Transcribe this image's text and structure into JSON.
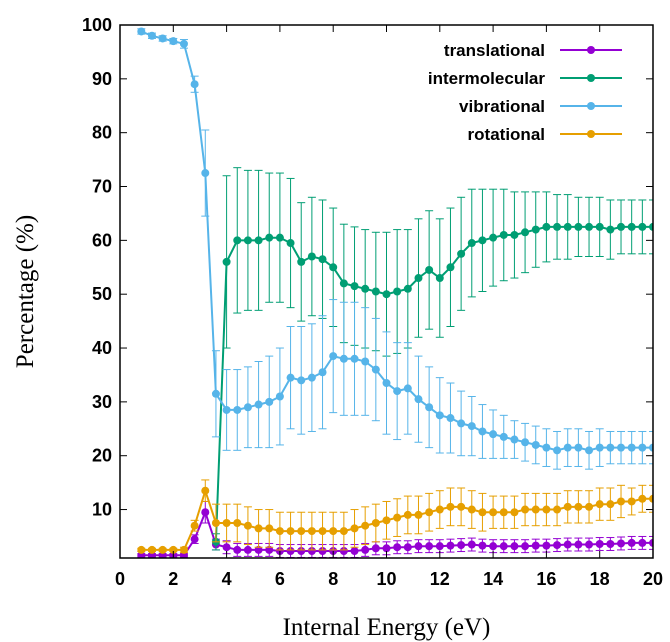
{
  "chart_data": {
    "type": "line",
    "title": "",
    "xlabel": "Internal Energy (eV)",
    "ylabel": "Percentage (%)",
    "xlim": [
      0,
      20
    ],
    "ylim": [
      1,
      100
    ],
    "xticks": [
      "0",
      "2",
      "4",
      "6",
      "8",
      "10",
      "12",
      "14",
      "16",
      "18",
      "20"
    ],
    "yticks": [
      "10",
      "20",
      "30",
      "40",
      "50",
      "60",
      "70",
      "80",
      "90",
      "100"
    ],
    "grid": false,
    "legend_position": "top-right",
    "x": [
      0.8,
      1.2,
      1.6,
      2.0,
      2.4,
      2.8,
      3.2,
      3.6,
      4.0,
      4.4,
      4.8,
      5.2,
      5.6,
      6.0,
      6.4,
      6.8,
      7.2,
      7.6,
      8.0,
      8.4,
      8.8,
      9.2,
      9.6,
      10.0,
      10.4,
      10.8,
      11.2,
      11.6,
      12.0,
      12.4,
      12.8,
      13.2,
      13.6,
      14.0,
      14.4,
      14.8,
      15.2,
      15.6,
      16.0,
      16.4,
      16.8,
      17.2,
      17.6,
      18.0,
      18.4,
      18.8,
      19.2,
      19.6,
      20.0
    ],
    "series": [
      {
        "name": "translational",
        "color": "#9400d3",
        "values": [
          1.5,
          1.5,
          1.5,
          1.5,
          1.5,
          4.5,
          9.5,
          3.5,
          3.0,
          2.5,
          2.5,
          2.5,
          2.5,
          2.3,
          2.3,
          2.3,
          2.3,
          2.3,
          2.3,
          2.3,
          2.3,
          2.5,
          2.8,
          2.8,
          3.0,
          3.0,
          3.2,
          3.2,
          3.2,
          3.3,
          3.4,
          3.5,
          3.3,
          3.2,
          3.2,
          3.2,
          3.2,
          3.3,
          3.3,
          3.4,
          3.5,
          3.5,
          3.5,
          3.6,
          3.6,
          3.7,
          3.8,
          3.8,
          3.8
        ],
        "errors": [
          0.3,
          0.3,
          0.3,
          0.3,
          0.3,
          0.8,
          2.0,
          1.0,
          1.2,
          1.2,
          1.2,
          1.2,
          1.2,
          1.2,
          1.2,
          1.2,
          1.2,
          1.2,
          1.2,
          1.2,
          1.2,
          1.2,
          1.2,
          1.2,
          1.2,
          1.2,
          1.2,
          1.2,
          1.2,
          1.2,
          1.2,
          1.2,
          1.2,
          1.2,
          1.2,
          1.2,
          1.2,
          1.2,
          1.2,
          1.2,
          1.2,
          1.2,
          1.2,
          1.2,
          1.2,
          1.2,
          1.2,
          1.2,
          1.2
        ]
      },
      {
        "name": "intermolecular",
        "color": "#009e73",
        "values": [
          null,
          null,
          null,
          null,
          null,
          null,
          null,
          4.0,
          56.0,
          60.0,
          60.0,
          60.0,
          60.5,
          60.5,
          59.5,
          56.0,
          57.0,
          56.5,
          55.0,
          52.0,
          51.5,
          51.0,
          50.5,
          50.0,
          50.5,
          51.0,
          53.0,
          54.5,
          53.0,
          55.0,
          57.5,
          59.5,
          60.0,
          60.5,
          61.0,
          61.0,
          61.5,
          62.0,
          62.5,
          62.5,
          62.5,
          62.5,
          62.5,
          62.5,
          62.0,
          62.5,
          62.5,
          62.5,
          62.5
        ],
        "errors": [
          null,
          null,
          null,
          null,
          null,
          null,
          null,
          1.5,
          16.0,
          13.5,
          13.0,
          13.0,
          12.0,
          12.0,
          12.0,
          11.0,
          11.0,
          11.0,
          11.0,
          11.0,
          11.0,
          11.0,
          11.0,
          11.5,
          11.5,
          11.0,
          11.0,
          11.0,
          11.0,
          11.0,
          10.5,
          10.0,
          9.5,
          9.0,
          8.5,
          8.0,
          7.5,
          7.0,
          6.5,
          6.0,
          6.0,
          5.5,
          5.5,
          5.5,
          5.5,
          5.0,
          5.0,
          5.0,
          5.0
        ]
      },
      {
        "name": "vibrational",
        "color": "#56b4e9",
        "values": [
          98.8,
          98.0,
          97.5,
          97.0,
          96.5,
          89.0,
          72.5,
          31.5,
          28.5,
          28.5,
          29.0,
          29.5,
          30.0,
          31.0,
          34.5,
          34.0,
          34.5,
          35.5,
          38.5,
          38.0,
          38.0,
          37.5,
          36.0,
          33.5,
          32.0,
          32.5,
          30.5,
          29.0,
          27.5,
          27.0,
          26.0,
          25.5,
          24.5,
          24.0,
          23.5,
          23.0,
          22.5,
          22.0,
          21.5,
          21.0,
          21.5,
          21.5,
          21.0,
          21.5,
          21.5,
          21.5,
          21.5,
          21.5,
          21.5
        ],
        "errors": [
          0.5,
          0.5,
          0.5,
          0.5,
          0.8,
          1.5,
          8.0,
          8.0,
          7.5,
          7.5,
          7.5,
          8.0,
          8.5,
          9.0,
          9.5,
          10.0,
          10.0,
          10.5,
          10.5,
          10.5,
          10.5,
          10.0,
          9.5,
          9.5,
          9.0,
          8.5,
          8.0,
          7.5,
          7.0,
          6.5,
          6.0,
          5.5,
          5.0,
          4.5,
          4.0,
          3.5,
          3.5,
          3.5,
          3.5,
          3.5,
          3.5,
          3.5,
          3.5,
          3.5,
          3.0,
          3.0,
          3.0,
          3.0,
          3.0
        ]
      },
      {
        "name": "rotational",
        "color": "#e69f00",
        "values": [
          2.5,
          2.5,
          2.5,
          2.5,
          2.5,
          7.0,
          13.5,
          7.5,
          7.5,
          7.5,
          7.0,
          6.5,
          6.5,
          6.0,
          6.0,
          6.0,
          6.0,
          6.0,
          6.0,
          6.0,
          6.5,
          7.0,
          7.5,
          8.0,
          8.5,
          9.0,
          9.0,
          9.5,
          10.0,
          10.5,
          10.5,
          10.0,
          9.5,
          9.5,
          9.5,
          9.5,
          10.0,
          10.0,
          10.0,
          10.0,
          10.5,
          10.5,
          10.5,
          11.0,
          11.0,
          11.5,
          11.5,
          12.0,
          12.0
        ],
        "errors": [
          0.3,
          0.3,
          0.3,
          0.3,
          0.5,
          1.0,
          2.0,
          3.5,
          3.5,
          3.5,
          3.5,
          3.5,
          3.5,
          3.5,
          3.5,
          3.5,
          3.5,
          3.5,
          3.5,
          3.5,
          3.5,
          3.5,
          3.5,
          3.5,
          3.5,
          3.5,
          3.5,
          3.5,
          3.5,
          3.5,
          3.5,
          3.5,
          3.5,
          3.0,
          3.0,
          3.0,
          3.0,
          3.0,
          3.0,
          3.0,
          3.0,
          3.0,
          3.0,
          3.0,
          3.0,
          3.0,
          2.5,
          2.5,
          2.5
        ]
      }
    ]
  }
}
